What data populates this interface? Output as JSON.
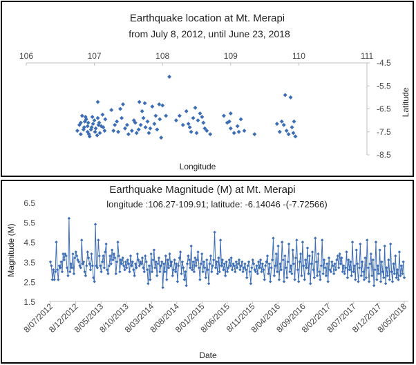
{
  "chart_data": [
    {
      "type": "scatter",
      "title_line1": "Earthquake location at Mt. Merapi",
      "title_line2": "from July 8, 2012,  until June 23, 2018",
      "xlabel": "Longitude",
      "ylabel": "Latitude",
      "xlim": [
        106,
        111
      ],
      "ylim": [
        -8.5,
        -4.5
      ],
      "x_axis_position": "top",
      "y_axis_position": "right",
      "x_ticks": [
        "106",
        "107",
        "108",
        "109",
        "110",
        "111"
      ],
      "y_ticks": [
        "-4.5",
        "-5.5",
        "-6.5",
        "-7.5",
        "-8.5"
      ],
      "color": "#3d6db5",
      "points": [
        [
          106.8,
          -7.1
        ],
        [
          106.85,
          -7.3
        ],
        [
          106.9,
          -7.5
        ],
        [
          106.78,
          -7.2
        ],
        [
          106.95,
          -7.4
        ],
        [
          106.82,
          -6.8
        ],
        [
          106.88,
          -6.95
        ],
        [
          106.92,
          -7.6
        ],
        [
          106.75,
          -7.45
        ],
        [
          106.98,
          -7.15
        ],
        [
          107.02,
          -7.35
        ],
        [
          107.05,
          -6.9
        ],
        [
          107.08,
          -7.55
        ],
        [
          107.1,
          -7.25
        ],
        [
          107.12,
          -6.75
        ],
        [
          107.15,
          -7.45
        ],
        [
          106.86,
          -7.05
        ],
        [
          106.93,
          -7.7
        ],
        [
          106.8,
          -7.6
        ],
        [
          106.97,
          -6.85
        ],
        [
          107.0,
          -7.0
        ],
        [
          107.04,
          -7.65
        ],
        [
          107.07,
          -7.1
        ],
        [
          106.9,
          -7.25
        ],
        [
          107.13,
          -7.3
        ],
        [
          107.16,
          -6.95
        ],
        [
          106.84,
          -7.4
        ],
        [
          106.96,
          -7.3
        ],
        [
          107.01,
          -7.5
        ],
        [
          106.87,
          -6.85
        ],
        [
          107.06,
          -7.2
        ],
        [
          106.91,
          -7.1
        ],
        [
          107.05,
          -6.2
        ],
        [
          107.25,
          -6.55
        ],
        [
          107.3,
          -7.2
        ],
        [
          107.35,
          -7.5
        ],
        [
          107.4,
          -6.9
        ],
        [
          107.45,
          -7.35
        ],
        [
          107.5,
          -7.6
        ],
        [
          107.28,
          -7.45
        ],
        [
          107.38,
          -6.5
        ],
        [
          107.42,
          -6.3
        ],
        [
          107.33,
          -7.05
        ],
        [
          107.48,
          -7.2
        ],
        [
          107.6,
          -7.1
        ],
        [
          107.65,
          -7.4
        ],
        [
          107.7,
          -6.6
        ],
        [
          107.75,
          -7.3
        ],
        [
          107.8,
          -7.55
        ],
        [
          107.85,
          -6.4
        ],
        [
          107.62,
          -7.55
        ],
        [
          107.68,
          -7.2
        ],
        [
          107.72,
          -6.9
        ],
        [
          107.78,
          -7.05
        ],
        [
          107.82,
          -7.35
        ],
        [
          107.88,
          -7.15
        ],
        [
          107.66,
          -6.2
        ],
        [
          107.74,
          -6.25
        ],
        [
          107.55,
          -7.45
        ],
        [
          107.58,
          -7.0
        ],
        [
          107.9,
          -6.8
        ],
        [
          107.92,
          -7.4
        ],
        [
          107.95,
          -6.3
        ],
        [
          108.0,
          -6.35
        ],
        [
          108.05,
          -6.8
        ],
        [
          107.98,
          -7.75
        ],
        [
          107.96,
          -6.95
        ],
        [
          108.1,
          -5.1
        ],
        [
          108.2,
          -7.0
        ],
        [
          108.25,
          -6.8
        ],
        [
          108.3,
          -7.2
        ],
        [
          108.35,
          -6.6
        ],
        [
          108.4,
          -7.3
        ],
        [
          108.45,
          -6.9
        ],
        [
          108.5,
          -7.55
        ],
        [
          108.55,
          -6.7
        ],
        [
          108.6,
          -7.1
        ],
        [
          108.65,
          -7.45
        ],
        [
          108.7,
          -7.6
        ],
        [
          108.42,
          -7.5
        ],
        [
          108.48,
          -6.45
        ],
        [
          108.52,
          -7.0
        ],
        [
          108.58,
          -6.85
        ],
        [
          108.62,
          -7.35
        ],
        [
          108.38,
          -7.15
        ],
        [
          108.9,
          -6.8
        ],
        [
          108.95,
          -7.1
        ],
        [
          109.0,
          -7.35
        ],
        [
          109.05,
          -7.55
        ],
        [
          109.1,
          -7.25
        ],
        [
          109.15,
          -6.95
        ],
        [
          109.2,
          -7.45
        ],
        [
          109.0,
          -6.7
        ],
        [
          108.98,
          -7.05
        ],
        [
          109.12,
          -7.5
        ],
        [
          109.35,
          -7.6
        ],
        [
          109.68,
          -7.15
        ],
        [
          109.72,
          -7.5
        ],
        [
          109.78,
          -7.2
        ],
        [
          109.8,
          -5.9
        ],
        [
          109.88,
          -6.0
        ],
        [
          109.85,
          -7.6
        ],
        [
          109.9,
          -7.3
        ],
        [
          109.93,
          -7.05
        ],
        [
          109.95,
          -7.7
        ],
        [
          109.82,
          -7.45
        ],
        [
          109.75,
          -7.05
        ],
        [
          109.92,
          -7.55
        ]
      ]
    },
    {
      "type": "line",
      "title": "Earthquake  Magnitude  (M)  at  Mt.  Merapi",
      "subtitle": "longitude :106.27-109.91;  latitude: -6.14046 -(-7.72566)",
      "xlabel": "Date",
      "ylabel": "Magnitude (M)",
      "ylim": [
        1.5,
        6.5
      ],
      "y_ticks": [
        "6.5",
        "5.5",
        "4.5",
        "3.5",
        "2.5",
        "1.5"
      ],
      "x_ticks": [
        "8/07/2012",
        "8/12/2012",
        "8/05/2013",
        "8/10/2013",
        "8/03/2014",
        "8/08/2014",
        "8/01/2015",
        "8/06/2015",
        "8/11/2015",
        "8/04/2016",
        "8/09/2016",
        "8/02/2017",
        "8/07/2017",
        "8/12/2017",
        "8/05/2018"
      ],
      "color": "#3d6db5",
      "values": [
        3.5,
        3.3,
        2.6,
        3.1,
        2.6,
        3.0,
        4.5,
        3.1,
        2.6,
        3.3,
        3.2,
        3.5,
        3.0,
        3.9,
        3.6,
        3.9,
        3.8,
        3.2,
        2.8,
        5.7,
        3.0,
        3.4,
        3.2,
        3.9,
        2.9,
        3.7,
        4.0,
        3.8,
        3.6,
        3.5,
        3.3,
        3.2,
        4.6,
        3.4,
        3.5,
        3.0,
        2.8,
        3.3,
        4.0,
        3.7,
        3.4,
        3.1,
        3.9,
        3.3,
        2.7,
        2.5,
        5.4,
        3.3,
        3.2,
        4.6,
        3.8,
        3.3,
        3.0,
        3.5,
        3.8,
        3.2,
        4.0,
        4.4,
        3.1,
        2.9,
        3.3,
        3.8,
        3.4,
        4.1,
        3.6,
        3.9,
        3.7,
        2.9,
        3.5,
        4.5,
        3.8,
        3.0,
        3.6,
        3.4,
        3.7,
        3.3,
        3.1,
        3.5,
        3.2,
        3.6,
        3.4,
        3.0,
        3.8,
        3.3,
        3.5,
        3.1,
        2.8,
        3.4,
        3.2,
        3.9,
        3.6,
        3.3,
        3.5,
        3.4,
        3.7,
        3.2,
        3.0,
        3.8,
        3.5,
        3.1,
        2.4,
        3.3,
        2.6,
        3.9,
        3.0,
        3.6,
        4.1,
        3.2,
        3.5,
        2.8,
        3.4,
        3.7,
        3.0,
        3.3,
        3.5,
        2.2,
        3.4,
        3.0,
        3.8,
        2.6,
        3.6,
        3.2,
        3.9,
        3.3,
        3.5,
        2.8,
        3.1,
        3.6,
        3.0,
        3.4,
        2.5,
        3.3,
        3.7,
        4.0,
        2.9,
        3.5,
        3.2,
        2.6,
        3.0,
        2.3,
        3.4,
        3.8,
        3.6,
        3.2,
        4.3,
        3.1,
        3.5,
        3.0,
        3.7,
        3.3,
        3.6,
        4.0,
        3.2,
        2.6,
        3.4,
        3.9,
        3.0,
        3.5,
        3.2,
        2.7,
        3.6,
        3.1,
        2.4,
        3.4,
        3.8,
        3.0,
        3.3,
        3.6,
        5.0,
        3.2,
        3.5,
        2.9,
        3.7,
        3.0,
        4.6,
        3.3,
        3.6,
        3.1,
        3.4,
        2.8,
        3.5,
        3.0,
        3.2,
        3.6,
        3.3,
        3.7,
        3.1,
        3.4,
        3.3,
        3.0,
        3.5,
        3.2,
        3.4,
        3.6,
        3.1,
        3.3,
        3.5,
        3.0,
        3.2,
        3.4,
        3.1,
        2.7,
        3.3,
        3.5,
        3.0,
        2.4,
        3.2,
        3.6,
        3.4,
        3.1,
        3.0,
        3.3,
        2.9,
        3.5,
        3.2,
        3.6,
        3.0,
        3.4,
        3.1,
        2.6,
        3.3,
        3.5,
        3.8,
        2.9,
        3.4,
        2.5,
        3.2,
        3.6,
        4.7,
        2.8,
        3.3,
        3.9,
        3.0,
        4.3,
        2.6,
        3.4,
        3.1,
        4.5,
        3.6,
        2.5,
        3.8,
        3.2,
        2.7,
        3.5,
        4.4,
        3.0,
        3.3,
        2.9,
        4.1,
        3.4,
        2.6,
        3.7,
        4.6,
        3.1,
        2.5,
        3.5,
        3.9,
        2.8,
        4.5,
        3.3,
        2.6,
        3.6,
        3.2,
        4.2,
        2.9,
        3.8,
        2.4,
        3.4,
        4.0,
        3.1,
        2.7,
        4.7,
        3.5,
        2.8,
        3.9,
        3.0,
        2.6,
        3.3,
        4.6,
        2.9,
        3.6,
        3.2,
        2.8,
        3.4,
        2.5,
        3.7,
        3.1,
        3.0,
        3.5,
        3.3,
        2.9,
        3.4,
        3.1,
        3.6,
        3.8,
        3.2,
        3.9,
        3.4,
        3.7,
        3.0,
        3.3,
        2.9,
        3.2,
        4.0,
        2.7,
        3.6,
        3.1,
        3.5,
        2.8,
        4.5,
        3.0,
        3.3,
        2.6,
        4.1,
        3.4,
        2.5,
        3.2,
        4.4,
        2.8,
        3.5,
        3.0,
        2.6,
        3.7,
        2.7,
        4.6,
        3.2,
        2.5,
        3.4,
        3.9,
        2.8,
        3.6,
        2.3,
        3.1,
        4.5,
        2.6,
        3.3,
        2.9,
        4.1,
        2.5,
        3.5,
        3.0,
        2.7,
        4.3,
        2.4,
        3.2,
        2.8,
        3.6,
        2.6,
        4.4,
        3.0,
        2.5,
        3.4,
        2.9,
        3.8,
        2.7,
        3.1,
        2.6,
        4.0,
        2.8,
        3.3,
        2.9,
        3.5,
        2.7
      ]
    }
  ]
}
